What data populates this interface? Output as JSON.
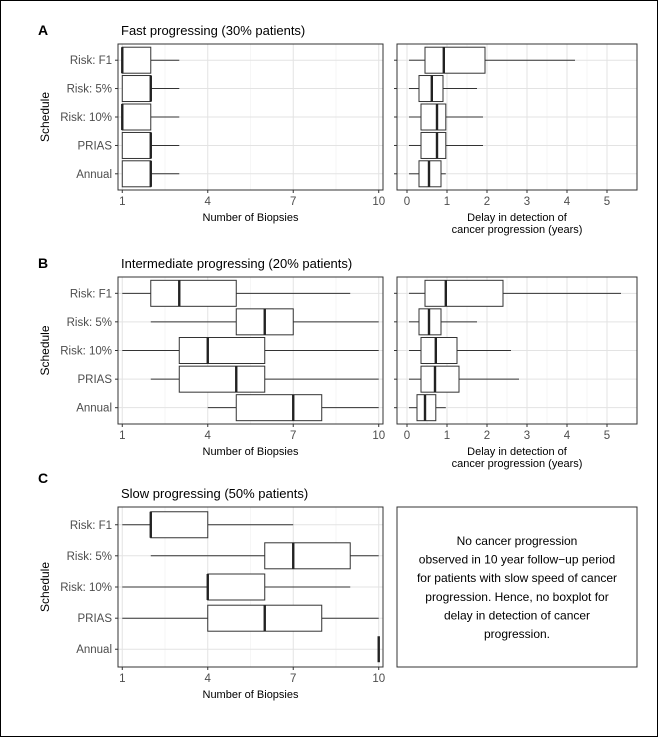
{
  "chart_data": [
    {
      "type": "boxplot",
      "panel": "A",
      "title": "Fast progressing (30% patients)",
      "xlabel": "Number of Biopsies",
      "ylabel": "Schedule",
      "xlim": [
        0.85,
        10.15
      ],
      "xticks": [
        1,
        4,
        7,
        10
      ],
      "categories": [
        "Risk: F1",
        "Risk: 5%",
        "Risk: 10%",
        "PRIAS",
        "Annual"
      ],
      "boxes": [
        {
          "min": 1,
          "q1": 1,
          "median": 1,
          "q3": 2,
          "max": 3
        },
        {
          "min": 1,
          "q1": 1,
          "median": 2,
          "q3": 2,
          "max": 3
        },
        {
          "min": 1,
          "q1": 1,
          "median": 1,
          "q3": 2,
          "max": 3
        },
        {
          "min": 1,
          "q1": 1,
          "median": 2,
          "q3": 2,
          "max": 3
        },
        {
          "min": 1,
          "q1": 1,
          "median": 2,
          "q3": 2,
          "max": 3
        }
      ]
    },
    {
      "type": "boxplot",
      "panel": "A",
      "title": "",
      "xlabel": [
        "Delay in detection of",
        "cancer progression (years)"
      ],
      "xlim": [
        -0.25,
        5.75
      ],
      "xticks": [
        0,
        1,
        2,
        3,
        4,
        5
      ],
      "categories": [
        "Risk: F1",
        "Risk: 5%",
        "Risk: 10%",
        "PRIAS",
        "Annual"
      ],
      "boxes": [
        {
          "min": 0.05,
          "q1": 0.45,
          "median": 0.92,
          "q3": 1.95,
          "max": 4.2
        },
        {
          "min": 0.05,
          "q1": 0.3,
          "median": 0.62,
          "q3": 0.9,
          "max": 1.75
        },
        {
          "min": 0.05,
          "q1": 0.35,
          "median": 0.75,
          "q3": 0.97,
          "max": 1.9
        },
        {
          "min": 0.05,
          "q1": 0.35,
          "median": 0.75,
          "q3": 0.97,
          "max": 1.9
        },
        {
          "min": 0.05,
          "q1": 0.3,
          "median": 0.55,
          "q3": 0.85,
          "max": 0.97
        }
      ]
    },
    {
      "type": "boxplot",
      "panel": "B",
      "title": "Intermediate progressing (20% patients)",
      "xlabel": "Number of Biopsies",
      "ylabel": "Schedule",
      "xlim": [
        0.85,
        10.15
      ],
      "xticks": [
        1,
        4,
        7,
        10
      ],
      "categories": [
        "Risk: F1",
        "Risk: 5%",
        "Risk: 10%",
        "PRIAS",
        "Annual"
      ],
      "boxes": [
        {
          "min": 1,
          "q1": 2,
          "median": 3,
          "q3": 5,
          "max": 9
        },
        {
          "min": 2,
          "q1": 5,
          "median": 6,
          "q3": 7,
          "max": 10
        },
        {
          "min": 1,
          "q1": 3,
          "median": 4,
          "q3": 6,
          "max": 10
        },
        {
          "min": 2,
          "q1": 3,
          "median": 5,
          "q3": 6,
          "max": 10
        },
        {
          "min": 4,
          "q1": 5,
          "median": 7,
          "q3": 8,
          "max": 10
        }
      ]
    },
    {
      "type": "boxplot",
      "panel": "B",
      "title": "",
      "xlabel": [
        "Delay in detection of",
        "cancer progression (years)"
      ],
      "xlim": [
        -0.25,
        5.75
      ],
      "xticks": [
        0,
        1,
        2,
        3,
        4,
        5
      ],
      "categories": [
        "Risk: F1",
        "Risk: 5%",
        "Risk: 10%",
        "PRIAS",
        "Annual"
      ],
      "boxes": [
        {
          "min": 0.05,
          "q1": 0.45,
          "median": 0.97,
          "q3": 2.4,
          "max": 5.35
        },
        {
          "min": 0.05,
          "q1": 0.3,
          "median": 0.55,
          "q3": 0.85,
          "max": 1.75
        },
        {
          "min": 0.05,
          "q1": 0.35,
          "median": 0.72,
          "q3": 1.25,
          "max": 2.6
        },
        {
          "min": 0.05,
          "q1": 0.35,
          "median": 0.7,
          "q3": 1.3,
          "max": 2.8
        },
        {
          "min": 0.05,
          "q1": 0.25,
          "median": 0.45,
          "q3": 0.72,
          "max": 0.97
        }
      ]
    },
    {
      "type": "boxplot",
      "panel": "C",
      "title": "Slow progressing (50% patients)",
      "xlabel": "Number of Biopsies",
      "ylabel": "Schedule",
      "xlim": [
        0.85,
        10.15
      ],
      "xticks": [
        1,
        4,
        7,
        10
      ],
      "categories": [
        "Risk: F1",
        "Risk: 5%",
        "Risk: 10%",
        "PRIAS",
        "Annual"
      ],
      "boxes": [
        {
          "min": 1,
          "q1": 2,
          "median": 2,
          "q3": 4,
          "max": 7
        },
        {
          "min": 2,
          "q1": 6,
          "median": 7,
          "q3": 9,
          "max": 10
        },
        {
          "min": 1,
          "q1": 4,
          "median": 4,
          "q3": 6,
          "max": 9
        },
        {
          "min": 1,
          "q1": 4,
          "median": 6,
          "q3": 8,
          "max": 10
        },
        {
          "min": 10,
          "q1": 10,
          "median": 10,
          "q3": 10,
          "max": 10
        }
      ]
    }
  ],
  "note_lines": [
    "No cancer progression",
    "observed in 10 year follow−up period",
    "for patients with slow speed of cancer",
    "progression. Hence, no boxplot for",
    "delay in detection of cancer",
    "progression."
  ]
}
